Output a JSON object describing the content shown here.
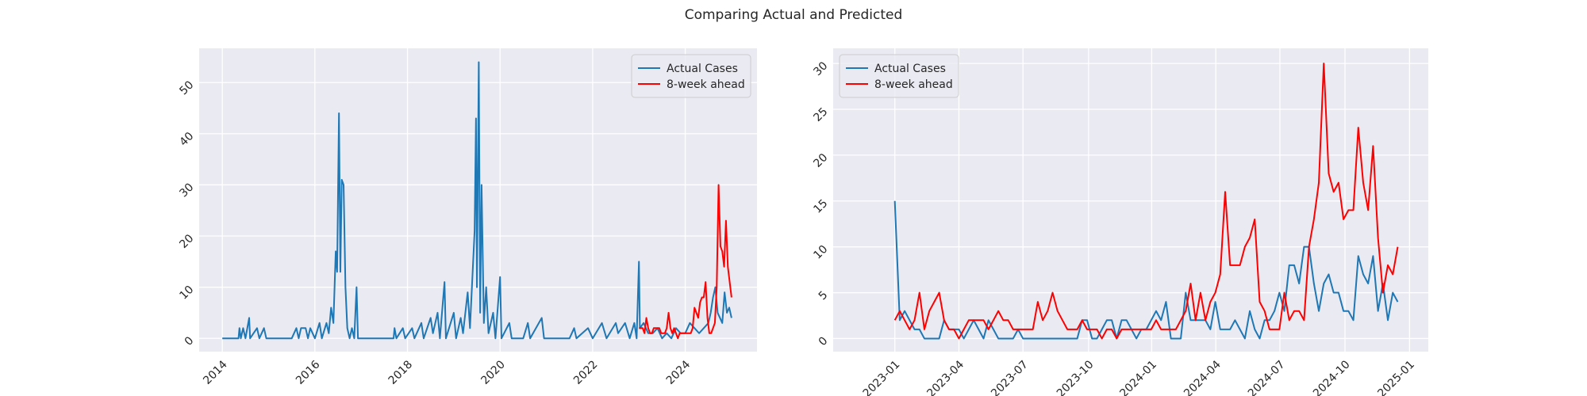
{
  "title": "Comparing Actual and Predicted",
  "chart_data": [
    {
      "type": "line",
      "xlim": [
        2013.5,
        2025.55
      ],
      "ylim": [
        -2.6,
        56.7
      ],
      "xticks": [
        2014,
        2016,
        2018,
        2020,
        2022,
        2024
      ],
      "yticks": [
        0,
        10,
        20,
        30,
        40,
        50
      ],
      "grid": true,
      "legend": "upper right",
      "series": [
        {
          "name": "Actual Cases",
          "color": "#1f77b4",
          "x": [
            2014.0,
            2014.35,
            2014.37,
            2014.4,
            2014.45,
            2014.5,
            2014.58,
            2014.6,
            2014.75,
            2014.8,
            2014.9,
            2014.95,
            2015.5,
            2015.6,
            2015.65,
            2015.7,
            2015.8,
            2015.85,
            2015.9,
            2016.0,
            2016.1,
            2016.15,
            2016.25,
            2016.3,
            2016.35,
            2016.4,
            2016.45,
            2016.48,
            2016.52,
            2016.55,
            2016.58,
            2016.62,
            2016.66,
            2016.7,
            2016.75,
            2016.8,
            2016.85,
            2016.9,
            2016.93,
            2017.7,
            2017.72,
            2017.76,
            2017.9,
            2017.95,
            2018.1,
            2018.15,
            2018.3,
            2018.35,
            2018.5,
            2018.55,
            2018.65,
            2018.7,
            2018.8,
            2018.83,
            2019.0,
            2019.05,
            2019.15,
            2019.2,
            2019.3,
            2019.35,
            2019.45,
            2019.48,
            2019.5,
            2019.54,
            2019.57,
            2019.6,
            2019.65,
            2019.7,
            2019.75,
            2019.85,
            2019.9,
            2020.0,
            2020.03,
            2020.2,
            2020.25,
            2020.5,
            2020.6,
            2020.65,
            2020.9,
            2020.95,
            2021.5,
            2021.6,
            2021.65,
            2021.9,
            2022.0,
            2022.2,
            2022.3,
            2022.5,
            2022.55,
            2022.7,
            2022.8,
            2022.9,
            2022.95,
            2023.0,
            2023.02,
            2023.1,
            2023.2,
            2023.3,
            2023.4,
            2023.5,
            2023.6,
            2023.7,
            2023.8,
            2023.9,
            2024.0,
            2024.1,
            2024.2,
            2024.3,
            2024.4,
            2024.5,
            2024.55,
            2024.6,
            2024.65,
            2024.7,
            2024.8,
            2024.85,
            2024.9,
            2024.95,
            2025.0
          ],
          "values": [
            0,
            0,
            2,
            0,
            2,
            0,
            4,
            0,
            2,
            0,
            2,
            0,
            0,
            2,
            0,
            2,
            2,
            0,
            2,
            0,
            3,
            0,
            3,
            1,
            6,
            3,
            17,
            13,
            44,
            13,
            31,
            30,
            10,
            2,
            0,
            2,
            0,
            10,
            0,
            0,
            2,
            0,
            2,
            0,
            2,
            0,
            3,
            0,
            4,
            1,
            5,
            0,
            11,
            0,
            5,
            0,
            4,
            1,
            9,
            2,
            21,
            43,
            10,
            54,
            5,
            30,
            3,
            10,
            1,
            5,
            0,
            12,
            0,
            3,
            0,
            0,
            3,
            0,
            4,
            0,
            0,
            2,
            0,
            2,
            0,
            3,
            0,
            3,
            1,
            3,
            0,
            3,
            0,
            15,
            2,
            3,
            1,
            1,
            2,
            0,
            1,
            0,
            2,
            1,
            1,
            3,
            2,
            1,
            2,
            3,
            5,
            8,
            10,
            5,
            3,
            9,
            5,
            6,
            4
          ]
        },
        {
          "name": "8-week ahead",
          "color": "#ff0000",
          "x": [
            2023.0,
            2023.04,
            2023.08,
            2023.12,
            2023.16,
            2023.2,
            2023.24,
            2023.28,
            2023.32,
            2023.36,
            2023.4,
            2023.44,
            2023.48,
            2023.52,
            2023.56,
            2023.6,
            2023.64,
            2023.68,
            2023.72,
            2023.76,
            2023.8,
            2023.84,
            2023.88,
            2023.92,
            2023.96,
            2024.0,
            2024.04,
            2024.08,
            2024.12,
            2024.16,
            2024.2,
            2024.24,
            2024.28,
            2024.32,
            2024.36,
            2024.4,
            2024.44,
            2024.48,
            2024.52,
            2024.56,
            2024.6,
            2024.64,
            2024.68,
            2024.72,
            2024.76,
            2024.8,
            2024.84,
            2024.88,
            2024.92,
            2024.96,
            2025.0
          ],
          "values": [
            2,
            2,
            2,
            1,
            4,
            2,
            1,
            1,
            2,
            2,
            2,
            2,
            1,
            1,
            1,
            2,
            5,
            2,
            1,
            2,
            1,
            0,
            1,
            1,
            1,
            1,
            1,
            1,
            1,
            2,
            6,
            5,
            4,
            7,
            8,
            8,
            11,
            4,
            1,
            1,
            2,
            3,
            10,
            30,
            18,
            17,
            14,
            23,
            14,
            11,
            8
          ]
        }
      ]
    },
    {
      "type": "line",
      "xlim": [
        -12.5,
        108.2
      ],
      "ylim": [
        -1.43,
        31.65
      ],
      "xticks": [
        {
          "value": 0,
          "label": "2023-01"
        },
        {
          "value": 13,
          "label": "2023-04"
        },
        {
          "value": 26,
          "label": "2023-07"
        },
        {
          "value": 39.3,
          "label": "2023-10"
        },
        {
          "value": 52.1,
          "label": "2024-01"
        },
        {
          "value": 65.1,
          "label": "2024-04"
        },
        {
          "value": 78.1,
          "label": "2024-07"
        },
        {
          "value": 91.3,
          "label": "2024-10"
        },
        {
          "value": 104.4,
          "label": "2025-01"
        }
      ],
      "yticks": [
        0,
        5,
        10,
        15,
        20,
        25,
        30
      ],
      "grid": true,
      "legend": "upper left",
      "series": [
        {
          "name": "Actual Cases",
          "color": "#1f77b4",
          "x": [
            0,
            1,
            2,
            3,
            4,
            5,
            6,
            7,
            8,
            9,
            10,
            11,
            12,
            13,
            14,
            15,
            16,
            17,
            18,
            19,
            20,
            21,
            22,
            23,
            24,
            25,
            26,
            27,
            28,
            29,
            30,
            31,
            32,
            33,
            34,
            35,
            36,
            37,
            38,
            39,
            40,
            41,
            42,
            43,
            44,
            45,
            46,
            47,
            48,
            49,
            50,
            51,
            52,
            53,
            54,
            55,
            56,
            57,
            58,
            59,
            60,
            61,
            62,
            63,
            64,
            65,
            66,
            67,
            68,
            69,
            70,
            71,
            72,
            73,
            74,
            75,
            76,
            77,
            78,
            79,
            80,
            81,
            82,
            83,
            84,
            85,
            86,
            87,
            88,
            89,
            90,
            91,
            92,
            93,
            94,
            95,
            96,
            97,
            98,
            99,
            100,
            101,
            102
          ],
          "values": [
            15,
            2,
            3,
            2,
            1,
            1,
            0,
            0,
            0,
            0,
            2,
            1,
            1,
            1,
            0,
            1,
            2,
            1,
            0,
            2,
            1,
            0,
            0,
            0,
            0,
            1,
            0,
            0,
            0,
            0,
            0,
            0,
            0,
            0,
            0,
            0,
            0,
            0,
            2,
            2,
            0,
            0,
            1,
            2,
            2,
            0,
            2,
            2,
            1,
            0,
            1,
            1,
            2,
            3,
            2,
            4,
            0,
            0,
            0,
            5,
            2,
            2,
            2,
            2,
            1,
            4,
            1,
            1,
            1,
            2,
            1,
            0,
            3,
            1,
            0,
            2,
            2,
            3,
            5,
            3,
            8,
            8,
            6,
            10,
            10,
            6,
            3,
            6,
            7,
            5,
            5,
            3,
            3,
            2,
            9,
            7,
            6,
            9,
            3,
            6,
            2,
            5,
            4
          ]
        },
        {
          "name": "8-week ahead",
          "color": "#ff0000",
          "x": [
            0,
            1,
            2,
            3,
            4,
            5,
            6,
            7,
            8,
            9,
            10,
            11,
            12,
            13,
            14,
            15,
            16,
            17,
            18,
            19,
            20,
            21,
            22,
            23,
            24,
            25,
            26,
            27,
            28,
            29,
            30,
            31,
            32,
            33,
            34,
            35,
            36,
            37,
            38,
            39,
            40,
            41,
            42,
            43,
            44,
            45,
            46,
            47,
            48,
            49,
            50,
            51,
            52,
            53,
            54,
            55,
            56,
            57,
            58,
            59,
            60,
            61,
            62,
            63,
            64,
            65,
            66,
            67,
            68,
            69,
            70,
            71,
            72,
            73,
            74,
            75,
            76,
            77,
            78,
            79,
            80,
            81,
            82,
            83,
            84,
            85,
            86,
            87,
            88,
            89,
            90,
            91,
            92,
            93,
            94,
            95,
            96,
            97,
            98,
            99,
            100,
            101,
            102
          ],
          "values": [
            2,
            3,
            2,
            1,
            2,
            5,
            1,
            3,
            4,
            5,
            2,
            1,
            1,
            0,
            1,
            2,
            2,
            2,
            2,
            1,
            2,
            3,
            2,
            2,
            1,
            1,
            1,
            1,
            1,
            4,
            2,
            3,
            5,
            3,
            2,
            1,
            1,
            1,
            2,
            1,
            1,
            1,
            0,
            1,
            1,
            0,
            1,
            1,
            1,
            1,
            1,
            1,
            1,
            2,
            1,
            1,
            1,
            1,
            2,
            3,
            6,
            2,
            5,
            2,
            4,
            5,
            7,
            16,
            8,
            8,
            8,
            10,
            11,
            13,
            4,
            3,
            1,
            1,
            1,
            5,
            2,
            3,
            3,
            2,
            10,
            13,
            17,
            30,
            18,
            16,
            17,
            13,
            14,
            14,
            23,
            17,
            14,
            21,
            11,
            5,
            8,
            7,
            10
          ]
        }
      ]
    }
  ]
}
